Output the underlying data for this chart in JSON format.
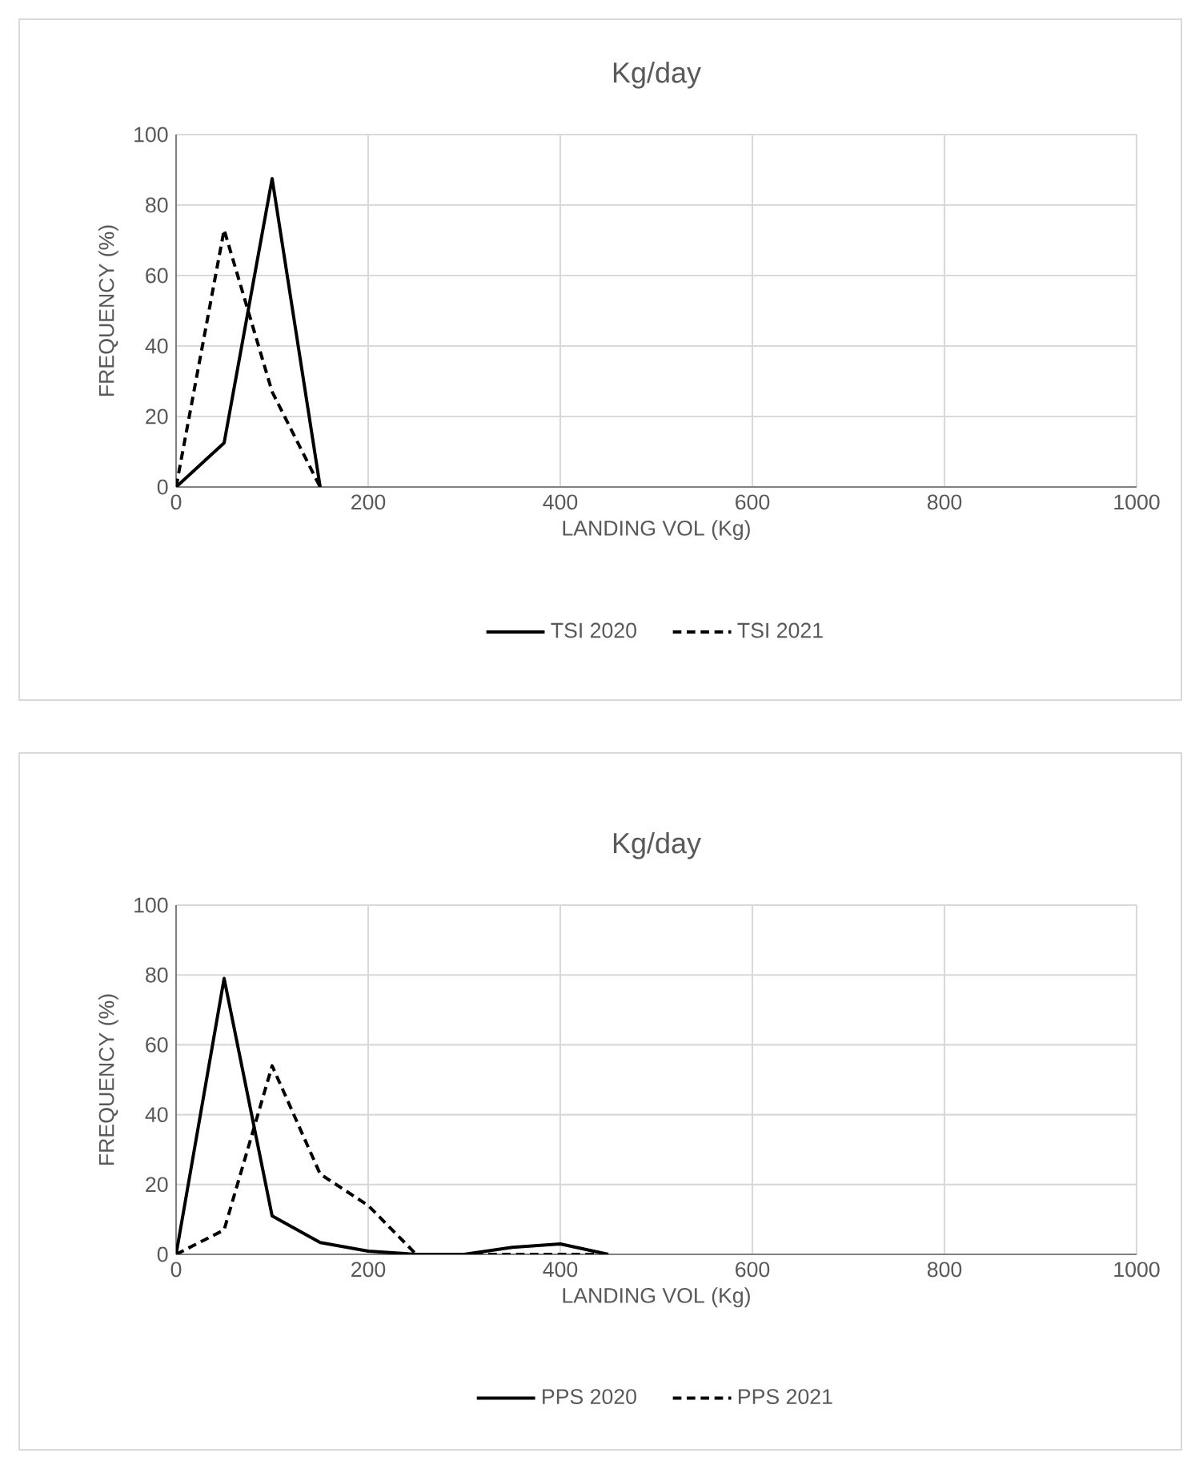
{
  "chart_data": [
    {
      "type": "line",
      "title": "Kg/day",
      "xlabel": "LANDING VOL (Kg)",
      "ylabel": "FREQUENCY (%)",
      "x": [
        0,
        50,
        100,
        150
      ],
      "series": [
        {
          "name": "TSI 2020",
          "color": "#000000",
          "line_style": "solid",
          "values": [
            0,
            12.5,
            87.5,
            0
          ]
        },
        {
          "name": "TSI 2021",
          "color": "#000000",
          "line_style": "dashed",
          "values": [
            0,
            73,
            27,
            0
          ]
        }
      ],
      "xlim": [
        0,
        1000
      ],
      "xticks": [
        0,
        200,
        400,
        600,
        800,
        1000
      ],
      "ylim": [
        0,
        100
      ],
      "yticks": [
        0,
        20,
        40,
        60,
        80,
        100
      ],
      "grid": true,
      "legend": "bottom"
    },
    {
      "type": "line",
      "title": "Kg/day",
      "xlabel": "LANDING VOL  (Kg)",
      "ylabel": "FREQUENCY (%)",
      "x": [
        0,
        50,
        100,
        150,
        200,
        250,
        300,
        350,
        400,
        450
      ],
      "series": [
        {
          "name": "PPS  2020",
          "color": "#000000",
          "line_style": "solid",
          "values": [
            0,
            79,
            11,
            3.4,
            0.9,
            0,
            0,
            2,
            3,
            0
          ]
        },
        {
          "name": "PPS 2021",
          "color": "#000000",
          "line_style": "dashed",
          "values": [
            0,
            7,
            54,
            23,
            14,
            0,
            0,
            0,
            0,
            0
          ]
        }
      ],
      "xlim": [
        0,
        1000
      ],
      "xticks": [
        0,
        200,
        400,
        600,
        800,
        1000
      ],
      "ylim": [
        0,
        100
      ],
      "yticks": [
        0,
        20,
        40,
        60,
        80,
        100
      ],
      "grid": true,
      "legend": "bottom"
    }
  ]
}
